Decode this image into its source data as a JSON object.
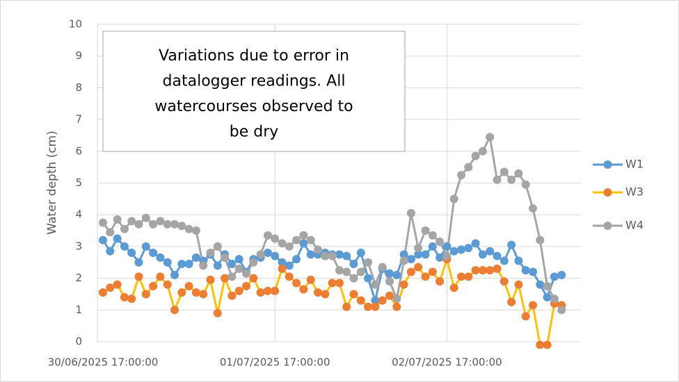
{
  "chart_data": {
    "type": "line",
    "ylabel": "Water depth (cm)",
    "annotation_lines": [
      "Variations due to error in",
      "datalogger readings. All",
      "watercourses observed to",
      "be dry"
    ],
    "categories": [
      "30/06/2025 17:00:00",
      null,
      null,
      null,
      null,
      null,
      null,
      null,
      null,
      null,
      null,
      null,
      null,
      null,
      null,
      null,
      null,
      null,
      null,
      null,
      null,
      null,
      null,
      null,
      "01/07/2025 17:00:00",
      null,
      null,
      null,
      null,
      null,
      null,
      null,
      null,
      null,
      null,
      null,
      null,
      null,
      null,
      null,
      null,
      null,
      null,
      null,
      null,
      null,
      null,
      null,
      "02/07/2025 17:00:00",
      null,
      null,
      null,
      null,
      null,
      null,
      null,
      null,
      null,
      null,
      null,
      null,
      null,
      null,
      null,
      null
    ],
    "series": [
      {
        "name": "W1",
        "color": "#5b9bd5",
        "marker_color": "#5b9bd5",
        "values": [
          3.2,
          2.85,
          3.25,
          3.0,
          2.8,
          2.5,
          3.0,
          2.8,
          2.65,
          2.5,
          2.1,
          2.45,
          2.45,
          2.65,
          2.55,
          2.75,
          2.4,
          2.75,
          2.45,
          2.6,
          2.2,
          2.6,
          2.65,
          2.8,
          2.7,
          2.5,
          2.4,
          2.6,
          3.1,
          2.75,
          2.75,
          2.8,
          2.75,
          2.75,
          2.7,
          2.45,
          2.8,
          2.0,
          1.3,
          2.3,
          2.15,
          2.1,
          2.75,
          2.6,
          2.75,
          2.75,
          3.0,
          2.65,
          3.0,
          2.85,
          2.9,
          2.95,
          3.1,
          2.75,
          2.85,
          2.7,
          2.55,
          3.05,
          2.55,
          2.25,
          2.2,
          1.8,
          1.4,
          2.05,
          2.1
        ]
      },
      {
        "name": "W3",
        "color": "#ffc000",
        "marker_color": "#ed7d31",
        "values": [
          1.55,
          1.7,
          1.8,
          1.4,
          1.35,
          2.05,
          1.5,
          1.75,
          2.05,
          1.8,
          1.0,
          1.55,
          1.75,
          1.55,
          1.5,
          1.95,
          0.9,
          2.0,
          1.45,
          1.6,
          1.75,
          2.0,
          1.55,
          1.6,
          1.6,
          2.3,
          2.05,
          1.85,
          1.65,
          1.95,
          1.55,
          1.5,
          1.85,
          1.85,
          1.1,
          1.5,
          1.3,
          1.1,
          1.1,
          1.3,
          1.45,
          1.1,
          1.8,
          2.2,
          2.35,
          2.05,
          2.2,
          1.9,
          2.6,
          1.7,
          2.05,
          2.05,
          2.25,
          2.25,
          2.25,
          2.3,
          1.9,
          1.25,
          1.8,
          0.8,
          1.15,
          -0.1,
          -0.1,
          1.2,
          1.15
        ]
      },
      {
        "name": "W4",
        "color": "#a5a5a5",
        "marker_color": "#a5a5a5",
        "values": [
          3.75,
          3.45,
          3.85,
          3.55,
          3.8,
          3.7,
          3.9,
          3.7,
          3.8,
          3.7,
          3.7,
          3.65,
          3.55,
          3.5,
          2.4,
          2.8,
          3.0,
          2.65,
          2.05,
          2.3,
          2.15,
          2.5,
          2.75,
          3.35,
          3.25,
          3.1,
          3.0,
          3.2,
          3.35,
          3.2,
          2.9,
          2.7,
          2.7,
          2.25,
          2.2,
          2.0,
          2.2,
          2.5,
          1.8,
          2.35,
          1.9,
          1.35,
          2.55,
          4.05,
          2.95,
          3.5,
          3.35,
          3.15,
          2.7,
          4.5,
          5.25,
          5.5,
          5.85,
          6.0,
          6.45,
          5.1,
          5.35,
          5.1,
          5.3,
          4.95,
          4.2,
          3.2,
          1.75,
          1.35,
          1.0
        ]
      }
    ],
    "ylim": [
      0,
      10
    ],
    "yticks": [
      0,
      1,
      2,
      3,
      4,
      5,
      6,
      7,
      8,
      9,
      10
    ],
    "grid": true,
    "legend": "right"
  }
}
